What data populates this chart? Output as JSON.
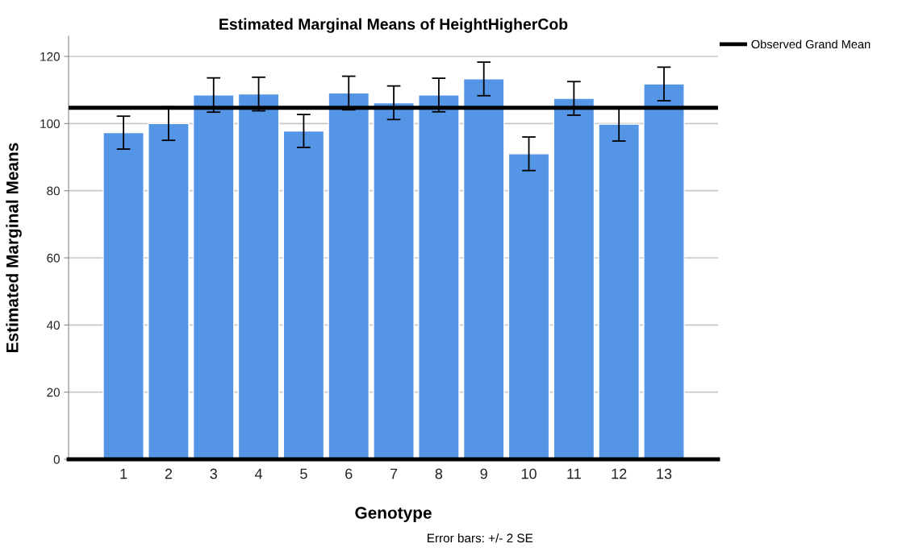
{
  "chart_data": {
    "type": "bar",
    "title": "Estimated Marginal Means of HeightHigherCob",
    "xlabel": "Genotype",
    "ylabel": "Estimated Marginal Means",
    "categories": [
      "1",
      "2",
      "3",
      "4",
      "5",
      "6",
      "7",
      "8",
      "9",
      "10",
      "11",
      "12",
      "13"
    ],
    "values": [
      97.3,
      100.0,
      108.5,
      108.8,
      97.8,
      109.1,
      106.2,
      108.5,
      113.3,
      91.0,
      107.5,
      99.8,
      111.8
    ],
    "errors": [
      4.9,
      5,
      5.1,
      5,
      4.9,
      5,
      5,
      5,
      5,
      5,
      5,
      5,
      5
    ],
    "color": "#5595e5",
    "ylim": [
      0,
      126
    ],
    "yticks": [
      0,
      20,
      40,
      60,
      80,
      100,
      120
    ],
    "grid": "y",
    "legend": "top right",
    "ref_lines": [
      {
        "axis": "y",
        "value": 104.7,
        "label": "Observed Grand Mean",
        "color": "#000000",
        "line_style": "solid"
      }
    ],
    "annotations": [
      "Error bars: +/- 2 SE"
    ]
  }
}
